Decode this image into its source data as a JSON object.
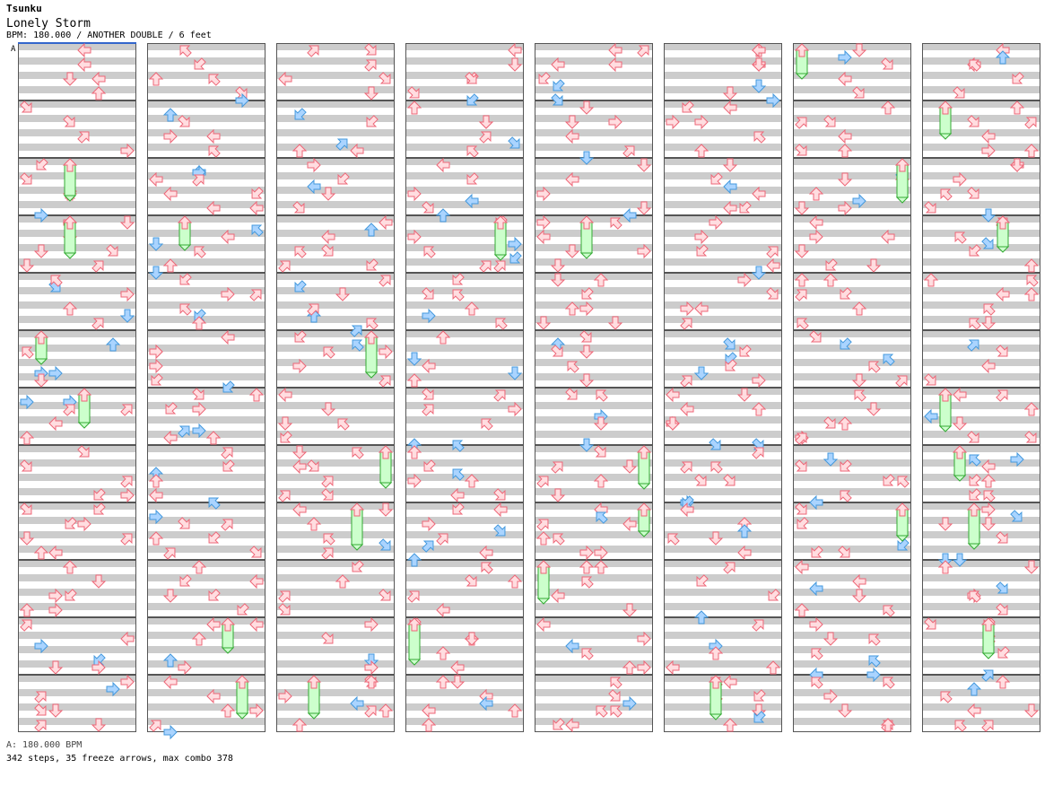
{
  "header": {
    "artist": "Tsunku",
    "title": "Lonely Storm",
    "info": "BPM: 180.000 / ANOTHER DOUBLE / 6 feet",
    "bpm_marker": "A"
  },
  "footer": {
    "bpm_legend": "A: 180.000 BPM",
    "stats": "342 steps, 35 freeze arrows, max combo 378"
  },
  "chart": {
    "columns": 8,
    "measures_per_column": 12,
    "lanes": 8,
    "colors": {
      "quarter": "#ee6677",
      "quarter_fill": "#ffdde0",
      "eighth": "#4499dd",
      "eighth_fill": "#aad4ff",
      "freeze": "#33aa33",
      "freeze_fill": "#ccffcc",
      "stripe": "#cccccc",
      "border": "#555555",
      "bpm_line": "#3366cc"
    },
    "notes": [
      [
        "d",
        5,
        0,
        2
      ],
      [
        "l",
        3,
        1,
        1
      ],
      [
        "r",
        2,
        0,
        0
      ],
      [
        "dr",
        1,
        1,
        1
      ],
      [
        "d",
        4,
        2,
        1
      ],
      [
        "l",
        0,
        3,
        1
      ],
      [
        "dl",
        4,
        1,
        0
      ],
      [
        "l",
        3,
        2,
        0
      ],
      [
        "dr",
        3,
        2,
        1
      ],
      [
        "u",
        4,
        0,
        3
      ],
      [
        "u",
        2,
        1,
        2
      ],
      [
        "l",
        6,
        2,
        0
      ],
      [
        "r",
        7,
        3,
        0
      ],
      [
        "u",
        6,
        0,
        1
      ],
      [
        "d",
        2,
        1,
        3
      ],
      [
        "dr",
        0,
        0,
        2
      ],
      [
        "ul",
        3,
        1,
        2
      ],
      [
        "u",
        1,
        0,
        3
      ],
      [
        "d",
        5,
        2,
        2
      ],
      [
        "r",
        6,
        3,
        3
      ],
      [
        "l",
        4,
        0,
        0
      ],
      [
        "ur",
        2,
        3,
        2
      ],
      [
        "d",
        7,
        2,
        3
      ],
      [
        "l",
        1,
        1,
        3
      ],
      [
        "dl",
        3,
        0,
        1
      ],
      [
        "u",
        0,
        2,
        0
      ],
      [
        "d",
        6,
        3,
        1
      ],
      [
        "r",
        5,
        1,
        2
      ],
      [
        "ul",
        1,
        2,
        3
      ],
      [
        "l",
        4,
        3,
        2
      ]
    ]
  }
}
